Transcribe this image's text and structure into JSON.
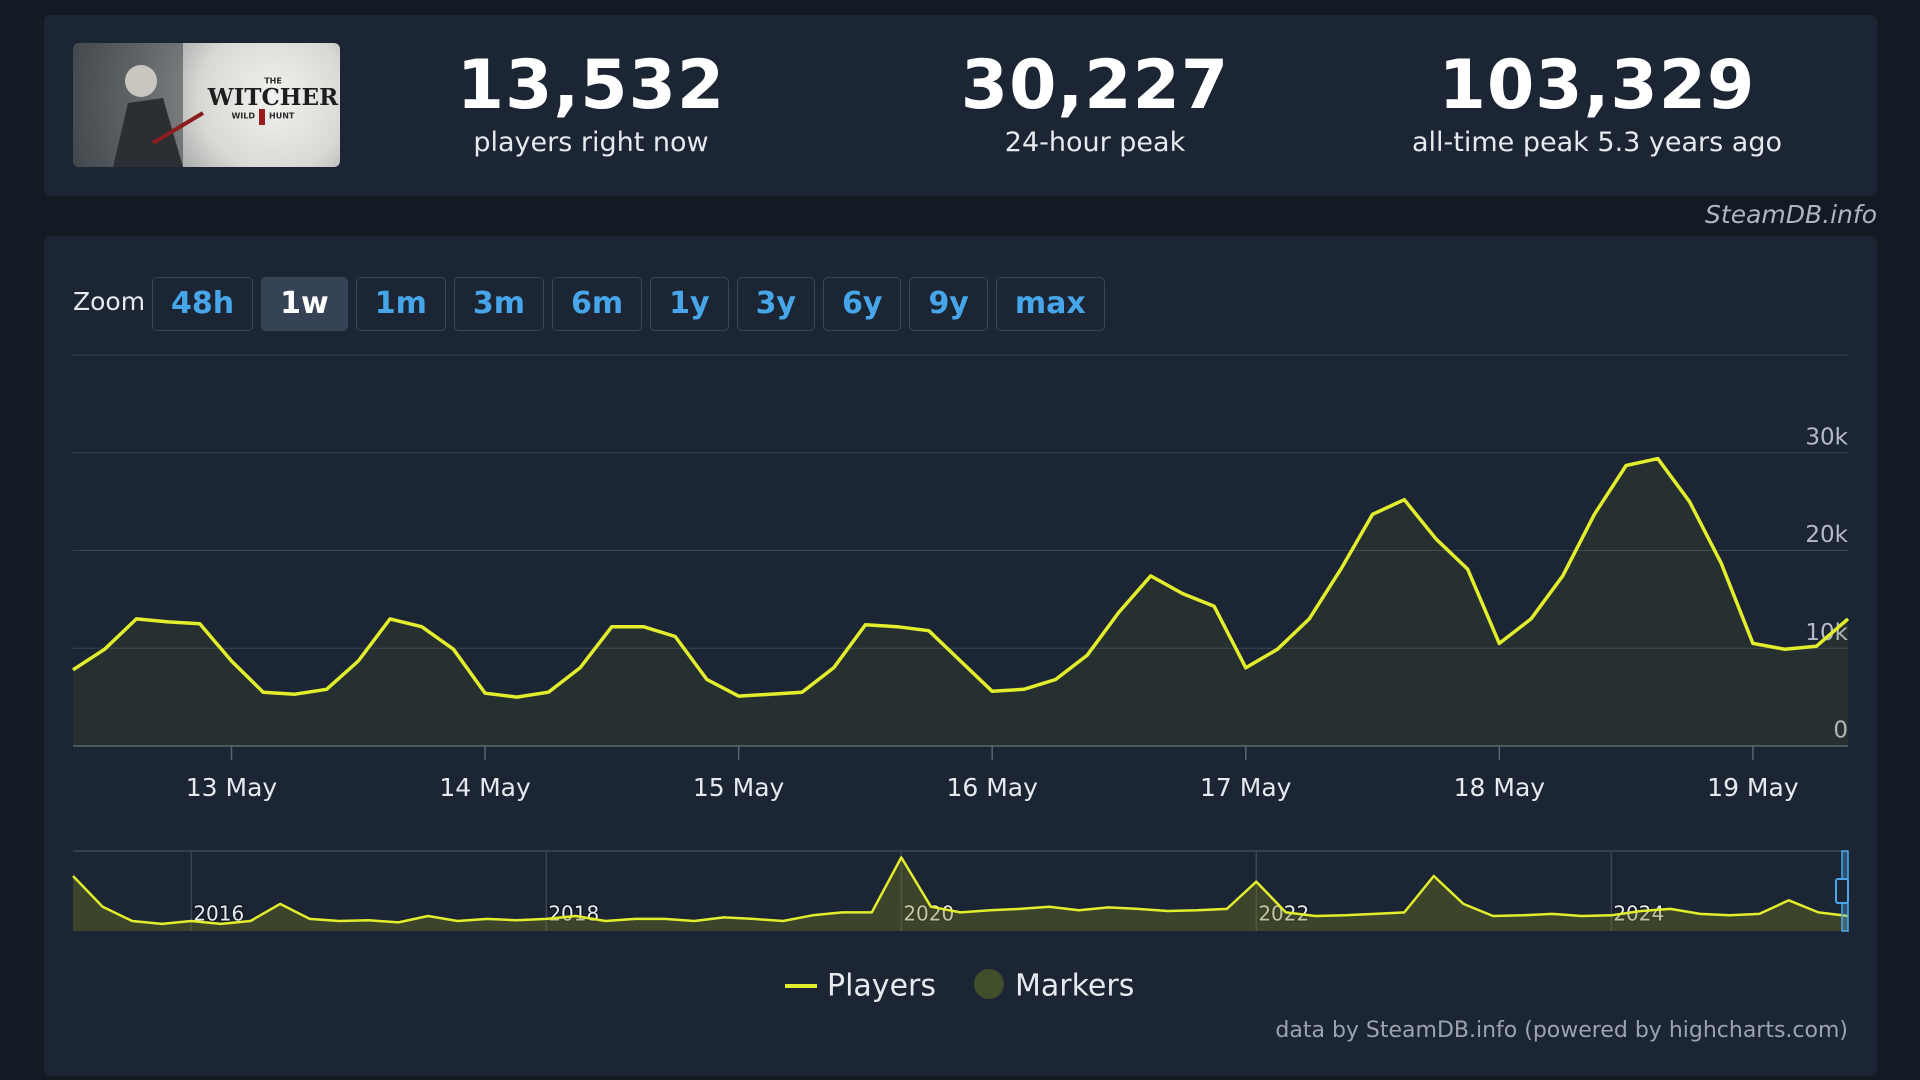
{
  "game_logo": {
    "small": "THE",
    "title": "WITCHER",
    "left": "WILD",
    "right": "HUNT"
  },
  "stats": [
    {
      "value": "13,532",
      "label": "players right now"
    },
    {
      "value": "30,227",
      "label": "24-hour peak"
    },
    {
      "value": "103,329",
      "label": "all-time peak 5.3 years ago"
    }
  ],
  "source": "SteamDB.info",
  "zoom": {
    "label": "Zoom",
    "options": [
      "48h",
      "1w",
      "1m",
      "3m",
      "6m",
      "1y",
      "3y",
      "6y",
      "9y",
      "max"
    ],
    "active": 1
  },
  "chart_data": {
    "type": "line",
    "categories": [
      null,
      null,
      null,
      null,
      null,
      "13 May",
      null,
      null,
      null,
      null,
      null,
      null,
      null,
      "14 May",
      null,
      null,
      null,
      null,
      null,
      null,
      null,
      "15 May",
      null,
      null,
      null,
      null,
      null,
      null,
      null,
      "16 May",
      null,
      null,
      null,
      null,
      null,
      null,
      null,
      "17 May",
      null,
      null,
      null,
      null,
      null,
      null,
      null,
      "18 May",
      null,
      null,
      null,
      null,
      null,
      null,
      null,
      "19 May",
      null,
      null,
      null
    ],
    "series": [
      {
        "name": "Players",
        "color": "#e2ee2c",
        "values": [
          7800,
          9900,
          13000,
          12700,
          12500,
          8700,
          5500,
          5300,
          5800,
          8700,
          13000,
          12200,
          9900,
          5400,
          5000,
          5500,
          8000,
          12200,
          12200,
          11200,
          6800,
          5100,
          5300,
          5500,
          8000,
          12400,
          12200,
          11800,
          8700,
          5600,
          5800,
          6800,
          9300,
          13700,
          17400,
          15600,
          14300,
          8000,
          9900,
          13000,
          18100,
          23700,
          25200,
          21200,
          18100,
          10500,
          13000,
          17400,
          23700,
          28700,
          29400,
          25000,
          18700,
          10500,
          9900,
          10200,
          13000
        ]
      }
    ],
    "markers": {
      "name": "Markers",
      "color": "#3f4f2a"
    },
    "ylim": [
      0,
      40000
    ],
    "yticks": [
      0,
      {
        "value": 10000,
        "label": "10k"
      },
      {
        "value": 20000,
        "label": "20k"
      },
      {
        "value": 30000,
        "label": "30k"
      }
    ],
    "grid": true,
    "navigator": {
      "categories": [
        null,
        null,
        null,
        null,
        "2016",
        null,
        null,
        null,
        null,
        null,
        null,
        null,
        null,
        null,
        null,
        null,
        "2018",
        null,
        null,
        null,
        null,
        null,
        null,
        null,
        null,
        null,
        null,
        null,
        "2020",
        null,
        null,
        null,
        null,
        null,
        null,
        null,
        null,
        null,
        null,
        null,
        "2022",
        null,
        null,
        null,
        null,
        null,
        null,
        null,
        null,
        null,
        null,
        null,
        "2024",
        null,
        null,
        null,
        null,
        null,
        null,
        null,
        null
      ],
      "values": [
        77000,
        34000,
        14000,
        10000,
        14000,
        10000,
        14000,
        38000,
        17000,
        14000,
        15000,
        12000,
        21000,
        14000,
        17000,
        15000,
        17000,
        21000,
        14000,
        17000,
        17000,
        14000,
        19000,
        17000,
        14000,
        22000,
        26000,
        26000,
        103000,
        34000,
        26000,
        29000,
        31000,
        34000,
        29000,
        33000,
        31000,
        28000,
        29000,
        31000,
        69000,
        26000,
        21000,
        22000,
        24000,
        26000,
        77000,
        38000,
        21000,
        22000,
        24000,
        21000,
        22000,
        28000,
        31000,
        24000,
        22000,
        24000,
        43000,
        26000,
        21000
      ],
      "ylim": [
        0,
        112000
      ],
      "color": "#e2ee2c"
    }
  },
  "credits": "data by SteamDB.info (powered by highcharts.com)"
}
